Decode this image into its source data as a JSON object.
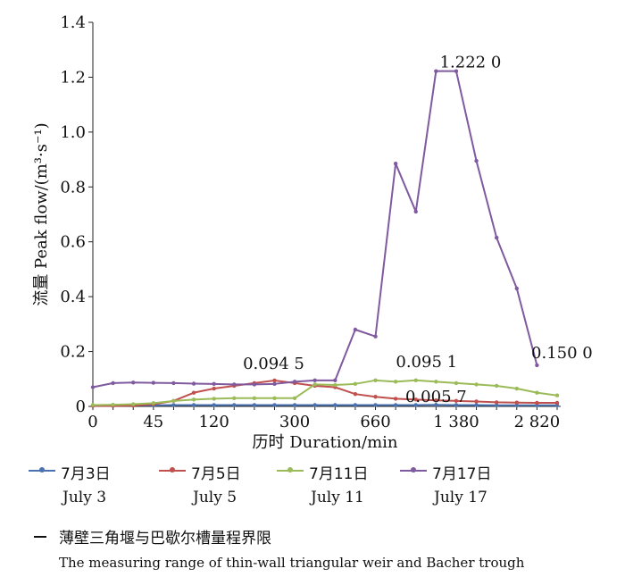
{
  "chart_data": {
    "type": "line",
    "categories": [
      "0",
      "",
      "",
      "45",
      "",
      "",
      "120",
      "",
      "",
      "",
      "300",
      "",
      "",
      "",
      "660",
      "",
      "",
      "",
      "1 380",
      "",
      "",
      "",
      "2 820",
      ""
    ],
    "ylabel": "流量 Peak flow/(m³·s⁻¹)",
    "xlabel": "历时 Duration/min",
    "ylim": [
      0,
      1.4
    ],
    "yticks": [
      "0",
      "0.2",
      "0.4",
      "0.6",
      "0.8",
      "1.0",
      "1.2",
      "1.4"
    ],
    "grid": false,
    "series": [
      {
        "name": "7月3日 July 3",
        "name_zh": "7月3日",
        "name_en": "July 3",
        "color": "#4a72b0",
        "values": [
          0.003,
          0.004,
          0.004,
          0.004,
          0.005,
          0.005,
          0.005,
          0.005,
          0.005,
          0.005,
          0.005,
          0.005,
          0.005,
          0.005,
          0.005,
          0.005,
          0.005,
          0.0057,
          0.005,
          0.005,
          0.004,
          0.004,
          0.004,
          0.004
        ]
      },
      {
        "name": "7月5日 July 5",
        "name_zh": "7月5日",
        "name_en": "July 5",
        "color": "#c0504d",
        "values": [
          0.002,
          0.002,
          0.003,
          0.008,
          0.02,
          0.05,
          0.065,
          0.075,
          0.085,
          0.0945,
          0.085,
          0.075,
          0.07,
          0.045,
          0.035,
          0.028,
          0.025,
          0.022,
          0.02,
          0.018,
          0.015,
          0.014,
          0.013,
          0.013
        ]
      },
      {
        "name": "7月11日 July 11",
        "name_zh": "7月11日",
        "name_en": "July 11",
        "color": "#9bbb59",
        "values": [
          0.005,
          0.006,
          0.008,
          0.012,
          0.02,
          0.025,
          0.028,
          0.03,
          0.03,
          0.03,
          0.03,
          0.08,
          0.078,
          0.082,
          0.095,
          0.09,
          0.0951,
          0.09,
          0.085,
          0.08,
          0.075,
          0.065,
          0.05,
          0.04
        ]
      },
      {
        "name": "7月17日 July 17",
        "name_zh": "7月17日",
        "name_en": "July 17",
        "color": "#7f5a9f",
        "values": [
          0.07,
          0.085,
          0.087,
          0.086,
          0.085,
          0.083,
          0.082,
          0.08,
          0.08,
          0.082,
          0.09,
          0.095,
          0.095,
          0.28,
          0.255,
          0.885,
          0.71,
          1.222,
          1.222,
          0.895,
          0.615,
          0.43,
          0.15,
          null
        ]
      }
    ],
    "annotations": [
      {
        "text": "1.222 0",
        "series": 3,
        "index": 18
      },
      {
        "text": "0.150 0",
        "series": 3,
        "index": 22
      },
      {
        "text": "0.094 5",
        "series": 1,
        "index": 9
      },
      {
        "text": "0.095 1",
        "series": 2,
        "index": 16
      },
      {
        "text": "0.005 7",
        "series": 0,
        "index": 17
      }
    ],
    "threshold_note": {
      "zh": "薄壁三角堰与巴歇尔槽量程界限",
      "en": "The measuring range of thin-wall triangular weir and Bacher trough"
    }
  }
}
